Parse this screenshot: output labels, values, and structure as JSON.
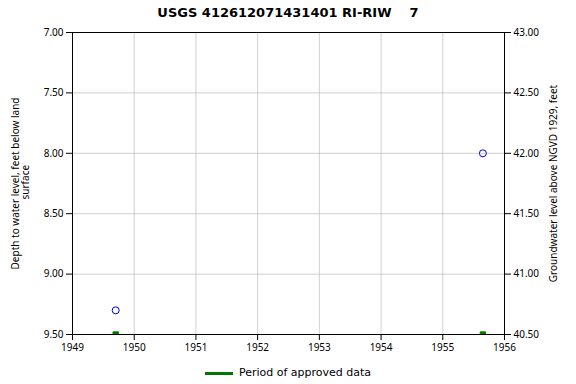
{
  "chart_data": {
    "type": "scatter",
    "title": "USGS 412612071431401 RI-RIW    7",
    "ylabel": "Depth to water level, feet below land\n surface",
    "y2label": "Groundwater level above NGVD 1929, feet",
    "xlim": [
      1949,
      1956
    ],
    "xticks": [
      1949,
      1950,
      1951,
      1952,
      1953,
      1954,
      1955,
      1956
    ],
    "ylim": [
      9.5,
      7.0
    ],
    "yticks": [
      {
        "value": 7.0,
        "label": "7.00"
      },
      {
        "value": 7.5,
        "label": "7.50"
      },
      {
        "value": 8.0,
        "label": "8.00"
      },
      {
        "value": 8.5,
        "label": "8.50"
      },
      {
        "value": 9.0,
        "label": "9.00"
      },
      {
        "value": 9.5,
        "label": "9.50"
      }
    ],
    "y2lim": [
      40.5,
      43.0
    ],
    "y2ticks": [
      {
        "value": 43.0,
        "label": "43.00"
      },
      {
        "value": 42.5,
        "label": "42.50"
      },
      {
        "value": 42.0,
        "label": "42.00"
      },
      {
        "value": 41.5,
        "label": "41.50"
      },
      {
        "value": 41.0,
        "label": "41.00"
      },
      {
        "value": 40.5,
        "label": "40.50"
      }
    ],
    "grid": true,
    "legend": "bottom",
    "series": [
      {
        "color": "#0000cc",
        "marker": "circle",
        "x": [
          1949.7,
          1955.65
        ],
        "values": [
          9.3,
          8.0
        ]
      },
      {
        "name": "Period of approved data",
        "color": "#007700",
        "marker": "square",
        "x": [
          1949.7,
          1955.65
        ],
        "values": [
          9.5,
          9.5
        ]
      }
    ]
  }
}
